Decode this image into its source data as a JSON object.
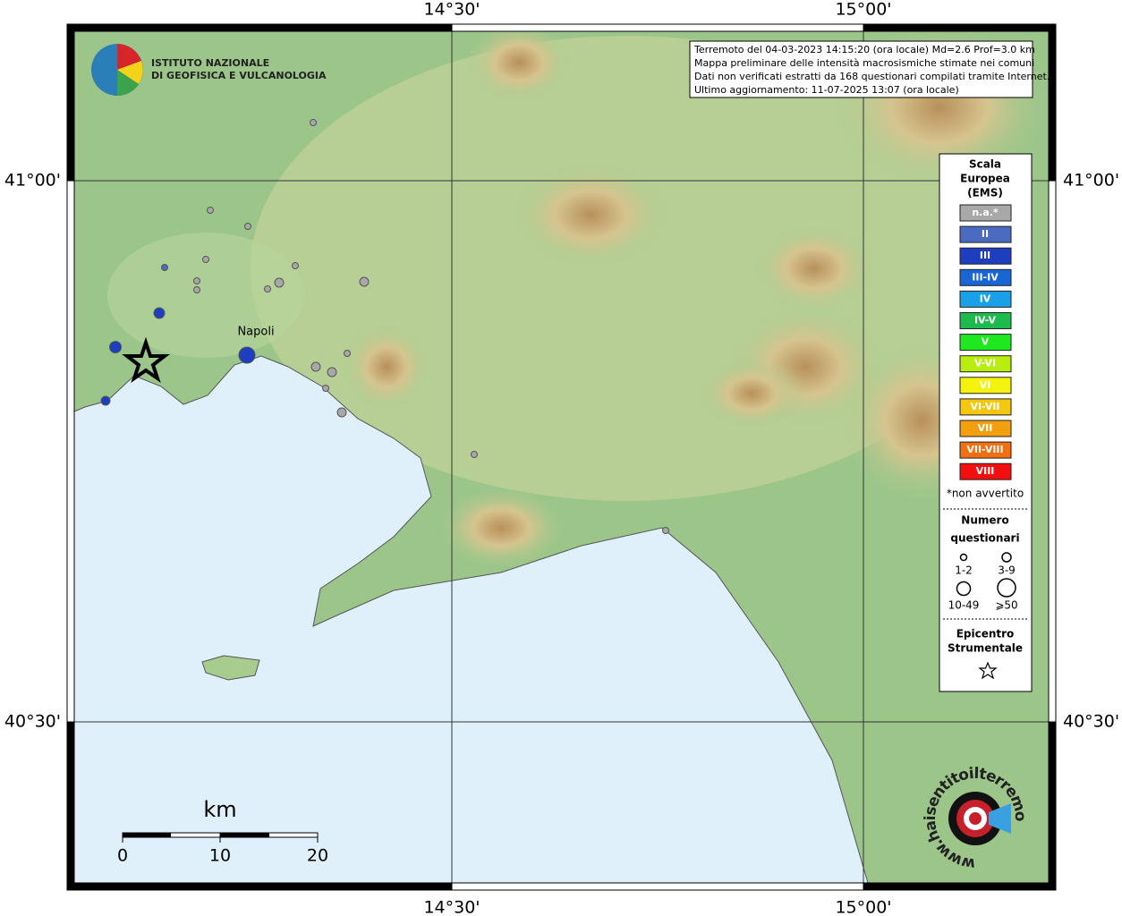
{
  "logo": {
    "line1": "ISTITUTO NAZIONALE",
    "line2": "DI GEOFISICA E VULCANOLOGIA"
  },
  "info": [
    "Terremoto del 04-03-2023 14:15:20 (ora locale) Md=2.6 Prof=3.0 km",
    "Mappa preliminare delle intensità macrosismiche stimate nei comuni",
    "Dati non verificati estratti da 168 questionari compilati tramite Internet.",
    "Ultimo aggiornamento: 11-07-2025 13:07 (ora locale)"
  ],
  "axes": {
    "top": [
      "14°30'",
      "15°00'"
    ],
    "bottom": [
      "14°30'",
      "15°00'"
    ],
    "left": [
      "41°00'",
      "40°30'"
    ],
    "right": [
      "41°00'",
      "40°30'"
    ]
  },
  "places": [
    "Napoli"
  ],
  "legend": {
    "title": [
      "Scala",
      "Europea",
      "(EMS)"
    ],
    "levels": [
      {
        "label": "n.a.*",
        "color": "#a8a8a8"
      },
      {
        "label": "II",
        "color": "#4a6bbf"
      },
      {
        "label": "III",
        "color": "#1d3fbf"
      },
      {
        "label": "III-IV",
        "color": "#1866d4"
      },
      {
        "label": "IV",
        "color": "#1aa0e6"
      },
      {
        "label": "IV-V",
        "color": "#1dbb4d"
      },
      {
        "label": "V",
        "color": "#1ee81e"
      },
      {
        "label": "V-VI",
        "color": "#b7ee10"
      },
      {
        "label": "VI",
        "color": "#f3f30d"
      },
      {
        "label": "VI-VII",
        "color": "#f3c80f"
      },
      {
        "label": "VII",
        "color": "#f3a00f"
      },
      {
        "label": "VII-VIII",
        "color": "#f36e0f"
      },
      {
        "label": "VIII",
        "color": "#f30f0f"
      }
    ],
    "note": "*non avvertito",
    "count_title": [
      "Numero",
      "questionari"
    ],
    "sizes": [
      "1-2",
      "3-9",
      "10-49",
      "⩾50"
    ],
    "epicenter_title": [
      "Epicentro",
      "Strumentale"
    ]
  },
  "scale_bar": {
    "unit": "km",
    "labels": [
      "0",
      "10",
      "20"
    ]
  },
  "watermark": "www.haisentitoilterremoto.it"
}
